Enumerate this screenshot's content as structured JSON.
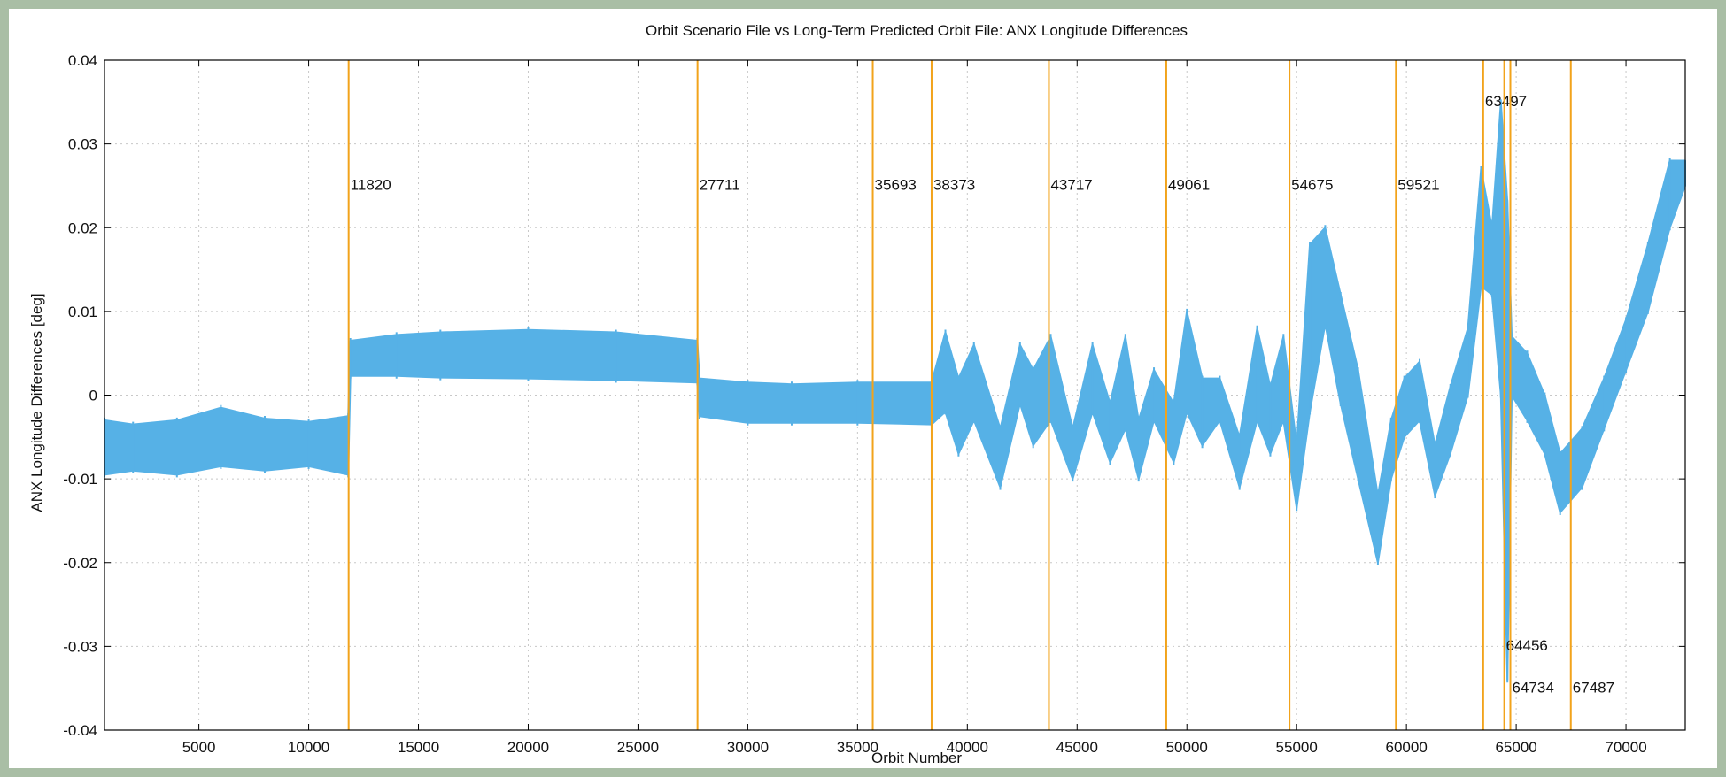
{
  "chart_data": {
    "type": "scatter",
    "title": "Orbit Scenario File vs Long-Term Predicted Orbit File: ANX Longitude Differences",
    "xlabel": "Orbit Number",
    "ylabel": "ANX Longitude Differences [deg]",
    "xlim": [
      700,
      72700
    ],
    "ylim": [
      -0.04,
      0.04
    ],
    "x_ticks": [
      5000,
      10000,
      15000,
      20000,
      25000,
      30000,
      35000,
      40000,
      45000,
      50000,
      55000,
      60000,
      65000,
      70000
    ],
    "y_ticks": [
      -0.04,
      -0.03,
      -0.02,
      -0.01,
      0,
      0.01,
      0.02,
      0.03,
      0.04
    ],
    "y_tick_labels": [
      "-0.04",
      "-0.03",
      "-0.02",
      "-0.01",
      "0",
      "0.01",
      "0.02",
      "0.03",
      "0.04"
    ],
    "grid": true,
    "series": [
      {
        "color": "#56b1e6",
        "marker": "star",
        "band_lower": [
          [
            700,
            -0.0095
          ],
          [
            2000,
            -0.009
          ],
          [
            4000,
            -0.0095
          ],
          [
            6000,
            -0.0085
          ],
          [
            8000,
            -0.009
          ],
          [
            10000,
            -0.0085
          ],
          [
            11800,
            -0.0095
          ],
          [
            11900,
            0.0023
          ],
          [
            14000,
            0.0023
          ],
          [
            16000,
            0.0021
          ],
          [
            20000,
            0.002
          ],
          [
            24000,
            0.0018
          ],
          [
            27700,
            0.0015
          ],
          [
            27800,
            -0.0025
          ],
          [
            30000,
            -0.0033
          ],
          [
            32000,
            -0.0033
          ],
          [
            35000,
            -0.0033
          ],
          [
            38373,
            -0.0035
          ],
          [
            39000,
            -0.002
          ],
          [
            39600,
            -0.007
          ],
          [
            40300,
            -0.003
          ],
          [
            41500,
            -0.011
          ],
          [
            42400,
            -0.001
          ],
          [
            43000,
            -0.006
          ],
          [
            43800,
            -0.003
          ],
          [
            44800,
            -0.01
          ],
          [
            45700,
            -0.002
          ],
          [
            46500,
            -0.008
          ],
          [
            47200,
            -0.004
          ],
          [
            47800,
            -0.01
          ],
          [
            48500,
            -0.003
          ],
          [
            49400,
            -0.008
          ],
          [
            50000,
            -0.002
          ],
          [
            50700,
            -0.006
          ],
          [
            51500,
            -0.003
          ],
          [
            52400,
            -0.011
          ],
          [
            53200,
            -0.003
          ],
          [
            53800,
            -0.007
          ],
          [
            54400,
            -0.003
          ],
          [
            55000,
            -0.0135
          ],
          [
            55600,
            -0.002
          ],
          [
            56300,
            0.0085
          ],
          [
            57000,
            -0.001
          ],
          [
            57800,
            -0.01
          ],
          [
            58700,
            -0.02
          ],
          [
            59300,
            -0.01
          ],
          [
            59900,
            -0.005
          ],
          [
            60600,
            -0.003
          ],
          [
            61300,
            -0.012
          ],
          [
            62000,
            -0.007
          ],
          [
            62800,
            0.0
          ],
          [
            63400,
            0.013
          ],
          [
            63900,
            0.012
          ],
          [
            64300,
            0.0
          ],
          [
            64600,
            -0.034
          ],
          [
            64800,
            0.0
          ],
          [
            65500,
            -0.003
          ],
          [
            66300,
            -0.007
          ],
          [
            67000,
            -0.014
          ],
          [
            68000,
            -0.011
          ],
          [
            69000,
            -0.004
          ],
          [
            70000,
            0.003
          ],
          [
            71000,
            0.01
          ],
          [
            72000,
            0.02
          ],
          [
            72700,
            0.025
          ]
        ],
        "band_upper": [
          [
            700,
            -0.003
          ],
          [
            2000,
            -0.0035
          ],
          [
            4000,
            -0.003
          ],
          [
            6000,
            -0.0015
          ],
          [
            8000,
            -0.0028
          ],
          [
            10000,
            -0.0032
          ],
          [
            11800,
            -0.0025
          ],
          [
            11900,
            0.0065
          ],
          [
            14000,
            0.0072
          ],
          [
            16000,
            0.0075
          ],
          [
            20000,
            0.0078
          ],
          [
            24000,
            0.0075
          ],
          [
            27700,
            0.0065
          ],
          [
            27800,
            0.002
          ],
          [
            30000,
            0.0015
          ],
          [
            32000,
            0.0013
          ],
          [
            35000,
            0.0015
          ],
          [
            38373,
            0.0015
          ],
          [
            39000,
            0.0075
          ],
          [
            39600,
            0.002
          ],
          [
            40300,
            0.006
          ],
          [
            41500,
            -0.004
          ],
          [
            42400,
            0.006
          ],
          [
            43000,
            0.003
          ],
          [
            43800,
            0.007
          ],
          [
            44800,
            -0.004
          ],
          [
            45700,
            0.006
          ],
          [
            46500,
            -0.001
          ],
          [
            47200,
            0.007
          ],
          [
            47800,
            -0.003
          ],
          [
            48500,
            0.003
          ],
          [
            49400,
            -0.001
          ],
          [
            50000,
            0.01
          ],
          [
            50700,
            0.002
          ],
          [
            51500,
            0.002
          ],
          [
            52400,
            -0.005
          ],
          [
            53200,
            0.008
          ],
          [
            53800,
            0.001
          ],
          [
            54400,
            0.007
          ],
          [
            55000,
            -0.006
          ],
          [
            55600,
            0.018
          ],
          [
            56300,
            0.02
          ],
          [
            57000,
            0.012
          ],
          [
            57800,
            0.003
          ],
          [
            58700,
            -0.012
          ],
          [
            59300,
            -0.003
          ],
          [
            59900,
            0.002
          ],
          [
            60600,
            0.004
          ],
          [
            61300,
            -0.006
          ],
          [
            62000,
            0.001
          ],
          [
            62800,
            0.008
          ],
          [
            63400,
            0.027
          ],
          [
            63900,
            0.02
          ],
          [
            64300,
            0.035
          ],
          [
            64600,
            0.023
          ],
          [
            64800,
            0.007
          ],
          [
            65500,
            0.005
          ],
          [
            66300,
            0.0
          ],
          [
            67000,
            -0.007
          ],
          [
            68000,
            -0.004
          ],
          [
            69000,
            0.002
          ],
          [
            70000,
            0.009
          ],
          [
            71000,
            0.018
          ],
          [
            72000,
            0.028
          ],
          [
            72700,
            0.028
          ]
        ]
      }
    ],
    "vertical_lines": [
      {
        "x": 11820,
        "label": "11820",
        "label_y": 0.0245
      },
      {
        "x": 27711,
        "label": "27711",
        "label_y": 0.0245
      },
      {
        "x": 35693,
        "label": "35693",
        "label_y": 0.0245
      },
      {
        "x": 38373,
        "label": "38373",
        "label_y": 0.0245
      },
      {
        "x": 43717,
        "label": "43717",
        "label_y": 0.0245
      },
      {
        "x": 49061,
        "label": "49061",
        "label_y": 0.0245
      },
      {
        "x": 54675,
        "label": "54675",
        "label_y": 0.0245
      },
      {
        "x": 59521,
        "label": "59521",
        "label_y": 0.0245
      },
      {
        "x": 63497,
        "label": "63497",
        "label_y": 0.0345
      },
      {
        "x": 64456,
        "label": "64456",
        "label_y": -0.0305
      },
      {
        "x": 64734,
        "label": "64734",
        "label_y": -0.0355
      },
      {
        "x": 67487,
        "label": "67487",
        "label_y": -0.0355
      }
    ],
    "vline_color": "#f2a31b"
  }
}
